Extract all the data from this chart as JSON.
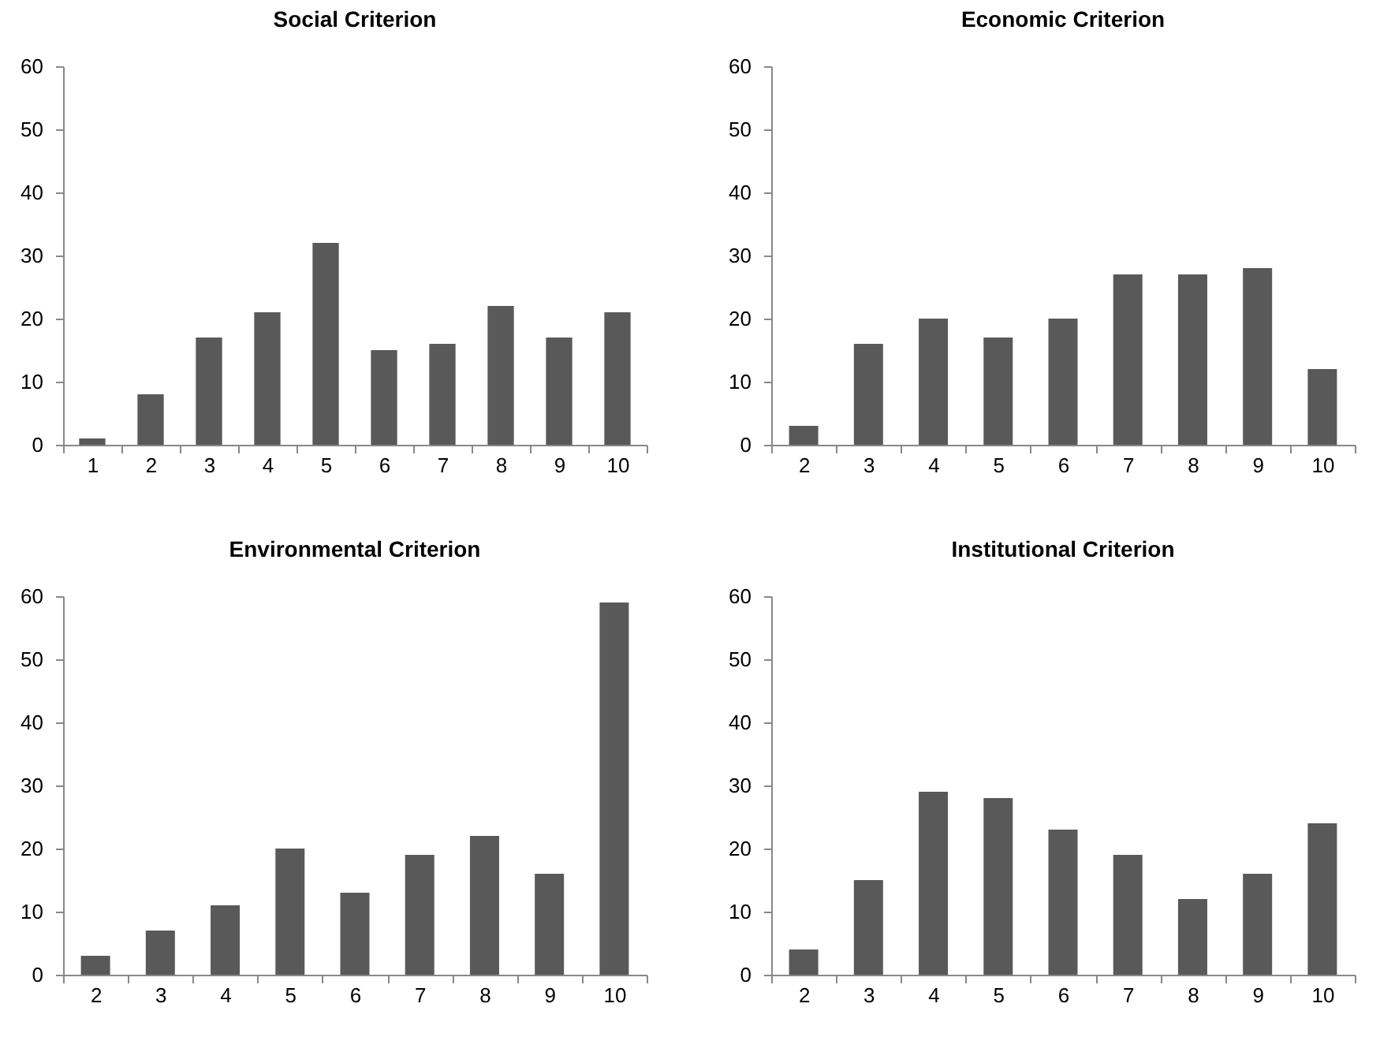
{
  "chart_data": [
    {
      "type": "bar",
      "title": "Social Criterion",
      "categories": [
        "1",
        "2",
        "3",
        "4",
        "5",
        "6",
        "7",
        "8",
        "9",
        "10"
      ],
      "values": [
        1,
        8,
        17,
        21,
        32,
        15,
        16,
        22,
        17,
        21
      ],
      "color": "#595959",
      "ylim": [
        0,
        60
      ],
      "yticks": [
        0,
        10,
        20,
        30,
        40,
        50,
        60
      ]
    },
    {
      "type": "bar",
      "title": "Economic Criterion",
      "categories": [
        "2",
        "3",
        "4",
        "5",
        "6",
        "7",
        "8",
        "9",
        "10"
      ],
      "values": [
        3,
        16,
        20,
        17,
        20,
        27,
        27,
        28,
        12
      ],
      "color": "#595959",
      "ylim": [
        0,
        60
      ],
      "yticks": [
        0,
        10,
        20,
        30,
        40,
        50,
        60
      ]
    },
    {
      "type": "bar",
      "title": "Environmental Criterion",
      "categories": [
        "2",
        "3",
        "4",
        "5",
        "6",
        "7",
        "8",
        "9",
        "10"
      ],
      "values": [
        3,
        7,
        11,
        20,
        13,
        19,
        22,
        16,
        59
      ],
      "color": "#595959",
      "ylim": [
        0,
        60
      ],
      "yticks": [
        0,
        10,
        20,
        30,
        40,
        50,
        60
      ]
    },
    {
      "type": "bar",
      "title": "Institutional Criterion",
      "categories": [
        "2",
        "3",
        "4",
        "5",
        "6",
        "7",
        "8",
        "9",
        "10"
      ],
      "values": [
        4,
        15,
        29,
        28,
        23,
        19,
        12,
        16,
        24
      ],
      "color": "#595959",
      "ylim": [
        0,
        60
      ],
      "yticks": [
        0,
        10,
        20,
        30,
        40,
        50,
        60
      ]
    }
  ]
}
